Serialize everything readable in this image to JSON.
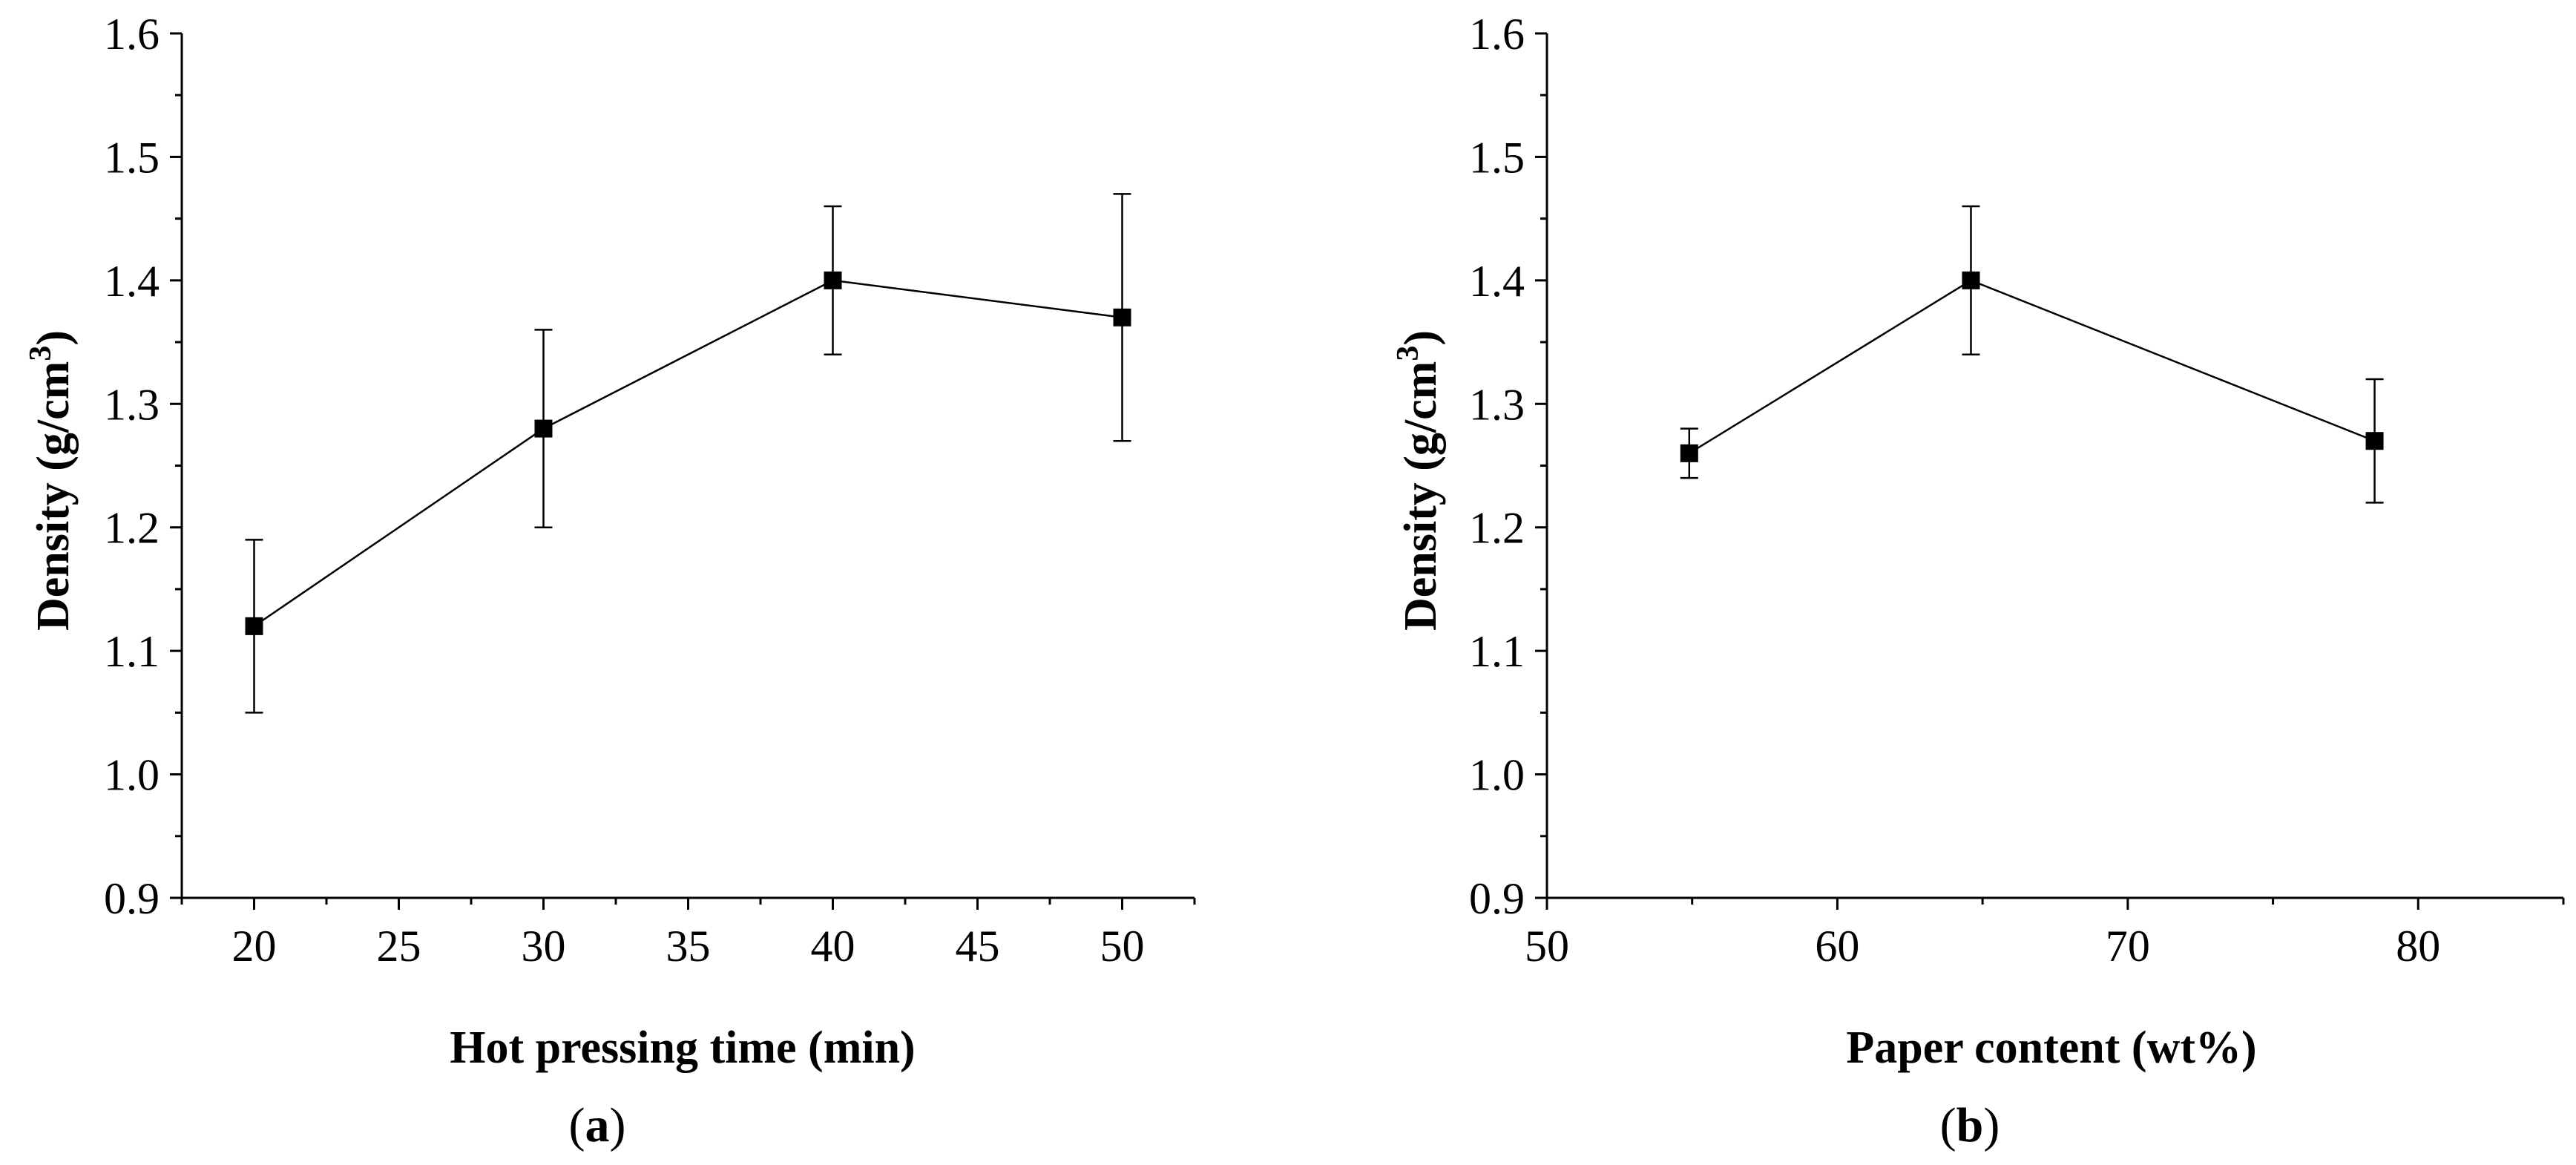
{
  "chart_data": [
    {
      "type": "line",
      "panel_label": "a",
      "title": "",
      "xlabel": "Hot pressing time (min)",
      "ylabel_main": "Density (g/cm",
      "ylabel_sup": "3",
      "ylabel_close": ")",
      "xlim": [
        17.5,
        52.5
      ],
      "ylim": [
        0.9,
        1.6
      ],
      "x_ticks": [
        "20",
        "25",
        "30",
        "35",
        "40",
        "45",
        "50"
      ],
      "y_ticks": [
        "0.9",
        "1.0",
        "1.1",
        "1.2",
        "1.3",
        "1.4",
        "1.5",
        "1.6"
      ],
      "series": [
        {
          "name": "Density",
          "marker": "square",
          "x": [
            20,
            30,
            40,
            50
          ],
          "y": [
            1.12,
            1.28,
            1.4,
            1.37
          ],
          "err": [
            0.07,
            0.08,
            0.06,
            0.1
          ]
        }
      ]
    },
    {
      "type": "line",
      "panel_label": "b",
      "title": "",
      "xlabel": "Paper content (wt%)",
      "ylabel_main": "Density (g/cm",
      "ylabel_sup": "3",
      "ylabel_close": ")",
      "xlim": [
        50,
        85
      ],
      "ylim": [
        0.9,
        1.6
      ],
      "x_ticks": [
        "50",
        "60",
        "70",
        "80"
      ],
      "y_ticks": [
        "0.9",
        "1.0",
        "1.1",
        "1.2",
        "1.3",
        "1.4",
        "1.5",
        "1.6"
      ],
      "series": [
        {
          "name": "Density",
          "marker": "square",
          "x": [
            54.9,
            64.6,
            78.5
          ],
          "y": [
            1.26,
            1.4,
            1.27
          ],
          "err": [
            0.02,
            0.06,
            0.05
          ]
        }
      ]
    }
  ]
}
